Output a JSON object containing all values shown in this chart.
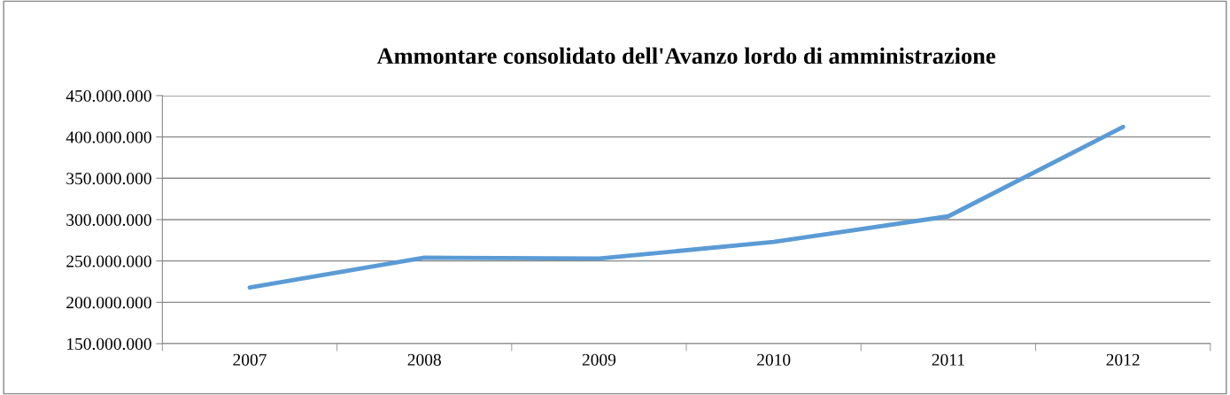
{
  "chart_data": {
    "type": "line",
    "title": "Ammontare consolidato dell'Avanzo lordo di amministrazione",
    "categories": [
      "2007",
      "2008",
      "2009",
      "2010",
      "2011",
      "2012"
    ],
    "series": [
      {
        "color": "#5b9bd5",
        "values": [
          218000000,
          254000000,
          253000000,
          273000000,
          304000000,
          412000000
        ]
      }
    ],
    "ylim": [
      150000000,
      450000000
    ],
    "yticks": [
      {
        "value": 150000000,
        "label": "150.000.000"
      },
      {
        "value": 200000000,
        "label": "200.000.000"
      },
      {
        "value": 250000000,
        "label": "250.000.000"
      },
      {
        "value": 300000000,
        "label": "300.000.000"
      },
      {
        "value": 350000000,
        "label": "350.000.000"
      },
      {
        "value": 400000000,
        "label": "400.000.000"
      },
      {
        "value": 450000000,
        "label": "450.000.000"
      }
    ],
    "grid": "y",
    "marker": "none",
    "line_style": "solid"
  }
}
